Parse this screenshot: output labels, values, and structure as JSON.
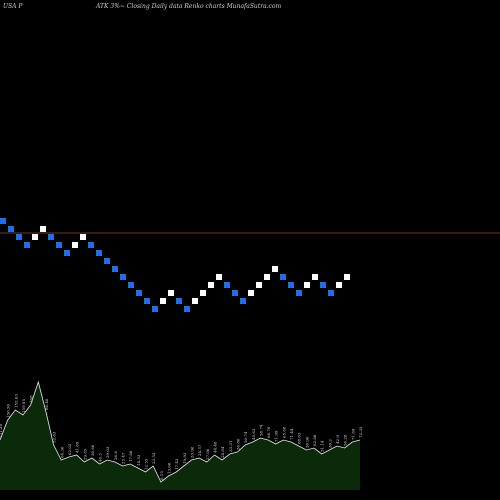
{
  "header": {
    "left": "USA P",
    "right": "ATK 3%~  Closing Daily data  Renko  charts MunafaSutra.com"
  },
  "colors": {
    "up": "#ffffff",
    "down": "#1e6fe8",
    "reference_line": "#a04a2a",
    "volume_fill": "#0a2a0a",
    "volume_line": "#e8e8e8",
    "background": "#000000"
  },
  "chart_data": [
    {
      "type": "renko",
      "brick_size_label": "3%",
      "brick_size_pct": 3,
      "reference_line": true,
      "direction_sequence": [
        "down",
        "down",
        "down",
        "down",
        "up",
        "up",
        "down",
        "down",
        "down",
        "up",
        "up",
        "down",
        "down",
        "down",
        "down",
        "down",
        "down",
        "down",
        "down",
        "down",
        "up",
        "up",
        "down",
        "down",
        "up",
        "up",
        "up",
        "up",
        "down",
        "down",
        "down",
        "up",
        "up",
        "up",
        "up",
        "down",
        "down",
        "down",
        "up",
        "up",
        "down",
        "down",
        "up",
        "up"
      ]
    },
    {
      "type": "area",
      "labels": [
        "151.38",
        "156.56",
        "152.63",
        "159.95",
        "168",
        "",
        "66.48",
        "52.63",
        "64.36",
        "62.02",
        "41.69",
        "29.85",
        "30.66",
        "40.3",
        "29.03",
        "26.8",
        "25.47",
        "17.86",
        "14.53",
        "12.55",
        "23.52",
        "8.15",
        "13.06",
        "17.43",
        "19.93",
        "33.96",
        "24.57",
        "27.06",
        "44.48",
        "24.64",
        "33.31",
        "36.86",
        "50.74",
        "45.63",
        "58.74",
        "66.76",
        "71.99",
        "65.68",
        "71.44",
        "68.63",
        "50.96",
        "62.88",
        "51.14",
        "36.2",
        "42.9",
        "56.28",
        "71.69",
        "72.35"
      ],
      "values": [
        50,
        70,
        80,
        75,
        85,
        108,
        78,
        45,
        30,
        33,
        35,
        28,
        32,
        26,
        30,
        28,
        24,
        26,
        22,
        18,
        24,
        8,
        14,
        18,
        24,
        30,
        32,
        28,
        35,
        30,
        36,
        38,
        45,
        48,
        52,
        50,
        46,
        50,
        48,
        44,
        40,
        42,
        36,
        40,
        44,
        42,
        48,
        50
      ]
    }
  ]
}
